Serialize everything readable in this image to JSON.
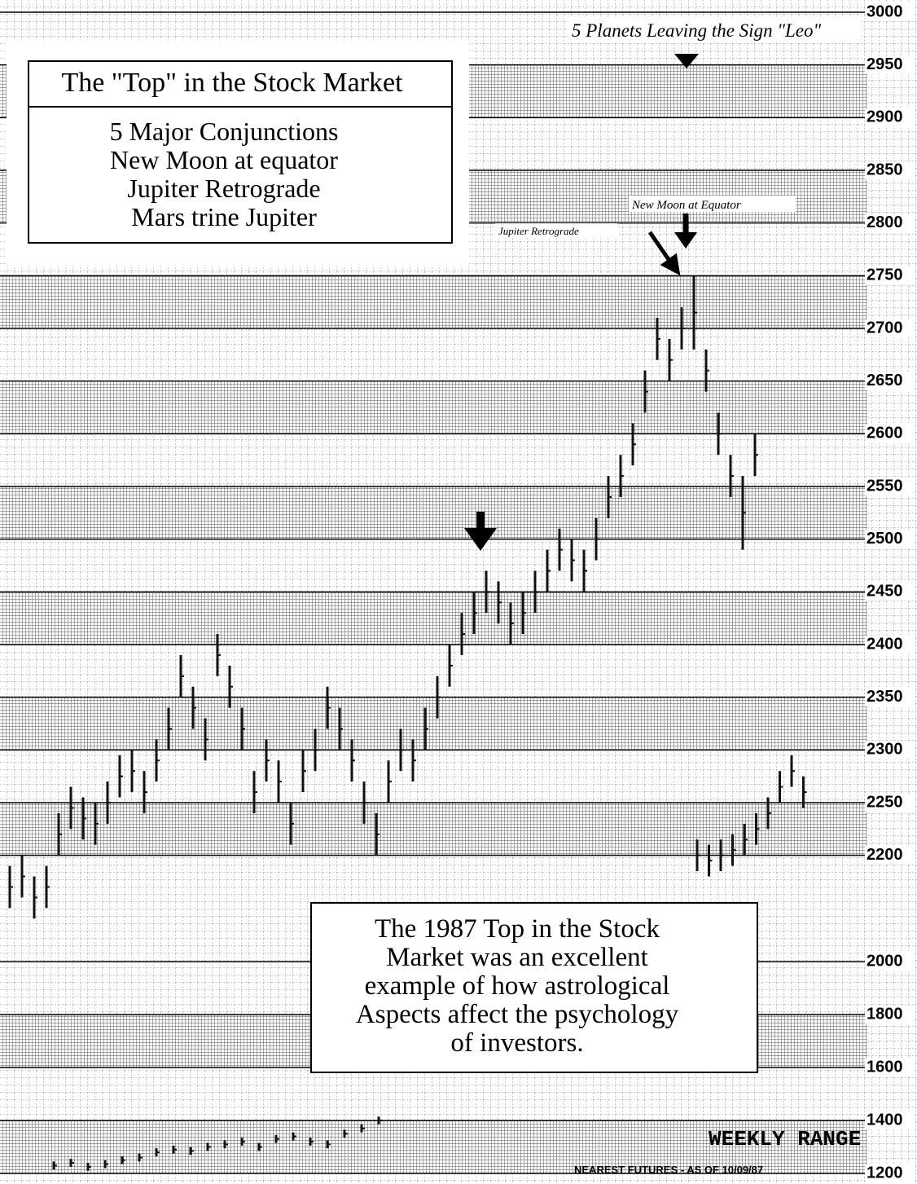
{
  "chart_data": [
    {
      "type": "range",
      "title": "The \"Top\" in the Stock Market",
      "subtitle": [
        "5 Major Conjunctions",
        "New Moon at equator",
        "Jupiter Retrograde",
        "Mars trine Jupiter"
      ],
      "note": [
        "The 1987 Top in  the Stock",
        "Market was an excellent",
        "example of how astrological",
        "Aspects affect the psychology",
        "of investors."
      ],
      "annotations": [
        "5 Planets Leaving the Sign \"Leo\"",
        "New Moon at Equator",
        "Jupiter Retrograde"
      ],
      "ylim": [
        2100,
        3000
      ],
      "yticks": [
        2200,
        2250,
        2300,
        2350,
        2400,
        2450,
        2500,
        2550,
        2600,
        2650,
        2700,
        2750,
        2800,
        2850,
        2900,
        2950,
        3000
      ],
      "grid": true,
      "color": "#111111",
      "series": [
        {
          "high": [
            2190,
            2200,
            2180,
            2190,
            2240,
            2265,
            2255,
            2250,
            2270,
            2295,
            2300,
            2280,
            2310,
            2340,
            2390,
            2360,
            2330,
            2410,
            2380,
            2340,
            2280,
            2310,
            2290,
            2250,
            2300,
            2320,
            2360,
            2340,
            2310,
            2270,
            2240,
            2290,
            2320,
            2310,
            2340,
            2370,
            2400,
            2430,
            2450,
            2470,
            2460,
            2440,
            2450,
            2470,
            2490,
            2510,
            2500,
            2490,
            2520,
            2560,
            2580,
            2610,
            2660,
            2710,
            2690,
            2720,
            2750,
            2680,
            2620,
            2580,
            2560,
            2600
          ],
          "low": [
            2150,
            2160,
            2140,
            2150,
            2200,
            2225,
            2215,
            2210,
            2230,
            2255,
            2260,
            2240,
            2270,
            2300,
            2350,
            2320,
            2290,
            2370,
            2340,
            2300,
            2240,
            2270,
            2250,
            2210,
            2260,
            2280,
            2320,
            2300,
            2270,
            2230,
            2200,
            2250,
            2280,
            2270,
            2300,
            2330,
            2360,
            2390,
            2410,
            2430,
            2420,
            2400,
            2410,
            2430,
            2450,
            2470,
            2460,
            2450,
            2480,
            2520,
            2540,
            2570,
            2620,
            2670,
            2650,
            2680,
            2680,
            2640,
            2580,
            2540,
            2490,
            2560
          ]
        },
        {
          "high": [
            2215,
            2210,
            2215,
            2220,
            2230,
            2240,
            2255,
            2280,
            2295,
            2275
          ],
          "low": [
            2185,
            2180,
            2185,
            2190,
            2200,
            2210,
            2225,
            2250,
            2265,
            2245
          ]
        }
      ]
    },
    {
      "type": "range",
      "annotations": [
        "WEEKLY RANGE",
        "NEAREST FUTURES - AS OF 10/09/87"
      ],
      "ylim": [
        1160,
        2050
      ],
      "yticks": [
        2000,
        1800,
        1600,
        1400,
        1200
      ],
      "grid": true,
      "color": "#111111",
      "series": [
        {
          "high": [
            1245,
            1255,
            1240,
            1250,
            1265,
            1275,
            1295,
            1305,
            1300,
            1315,
            1325,
            1335,
            1315,
            1345,
            1355,
            1335,
            1325,
            1365,
            1385,
            1415
          ],
          "low": [
            1215,
            1225,
            1210,
            1220,
            1235,
            1245,
            1265,
            1275,
            1270,
            1285,
            1295,
            1305,
            1285,
            1315,
            1325,
            1305,
            1295,
            1335,
            1355,
            1385
          ]
        }
      ]
    }
  ]
}
